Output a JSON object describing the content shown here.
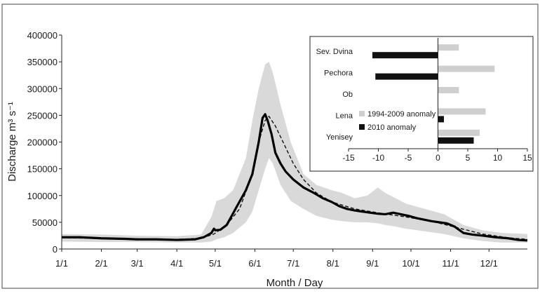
{
  "chart_data": [
    {
      "type": "line",
      "xlabel": "Month / Day",
      "ylabel": "Discharge m³ s⁻¹",
      "x_tick_labels": [
        "1/1",
        "2/1",
        "3/1",
        "4/1",
        "5/1",
        "6/1",
        "7/1",
        "8/1",
        "9/1",
        "10/1",
        "11/1",
        "12/1"
      ],
      "y_tick_labels": [
        "0",
        "50000",
        "100000",
        "150000",
        "200000",
        "250000",
        "300000",
        "350000",
        "400000"
      ],
      "ylim": [
        0,
        400000
      ],
      "xlim_day_of_year": [
        1,
        365
      ],
      "grid": false,
      "series": [
        {
          "role": "observed_2010",
          "style": "thick black solid line",
          "x_day_of_year": [
            1,
            15,
            32,
            50,
            60,
            75,
            91,
            105,
            112,
            118,
            120,
            121,
            125,
            130,
            138,
            145,
            150,
            155,
            158,
            160,
            162,
            165,
            168,
            172,
            176,
            182,
            190,
            198,
            205,
            212,
            218,
            224,
            230,
            236,
            242,
            248,
            254,
            260,
            266,
            272,
            278,
            284,
            290,
            296,
            302,
            308,
            315,
            322,
            330,
            340,
            350,
            358,
            365
          ],
          "y": [
            22000,
            22000,
            20000,
            19000,
            18000,
            18000,
            17000,
            18000,
            22000,
            30000,
            38000,
            35000,
            36000,
            45000,
            80000,
            110000,
            140000,
            200000,
            245000,
            252000,
            240000,
            215000,
            180000,
            160000,
            145000,
            130000,
            115000,
            105000,
            95000,
            88000,
            80000,
            75000,
            72000,
            70000,
            68000,
            66000,
            65000,
            68000,
            65000,
            62000,
            58000,
            55000,
            52000,
            50000,
            48000,
            42000,
            30000,
            27000,
            25000,
            22000,
            20000,
            17000,
            16000
          ]
        },
        {
          "role": "mean",
          "style": "thin dashed black line",
          "x_day_of_year": [
            1,
            32,
            60,
            91,
            110,
            120,
            130,
            140,
            150,
            155,
            160,
            163,
            168,
            175,
            182,
            190,
            200,
            212,
            230,
            250,
            270,
            290,
            310,
            330,
            350,
            365
          ],
          "y": [
            21000,
            20000,
            19000,
            18000,
            20000,
            28000,
            45000,
            75000,
            140000,
            200000,
            240000,
            248000,
            230000,
            195000,
            160000,
            130000,
            105000,
            88000,
            75000,
            67000,
            60000,
            52000,
            40000,
            28000,
            21000,
            18000
          ]
        },
        {
          "role": "range",
          "style": "light gray band",
          "x_day_of_year": [
            1,
            32,
            60,
            91,
            110,
            118,
            122,
            128,
            135,
            145,
            150,
            155,
            160,
            163,
            166,
            172,
            180,
            190,
            200,
            212,
            220,
            230,
            240,
            248,
            254,
            262,
            270,
            285,
            300,
            315,
            330,
            345,
            365
          ],
          "y_upper": [
            28000,
            27000,
            25000,
            24000,
            27000,
            60000,
            90000,
            95000,
            110000,
            170000,
            240000,
            300000,
            345000,
            350000,
            330000,
            270000,
            200000,
            140000,
            120000,
            110000,
            105000,
            95000,
            100000,
            115000,
            105000,
            95000,
            85000,
            75000,
            65000,
            45000,
            35000,
            30000,
            28000
          ],
          "y_lower": [
            14000,
            13000,
            13000,
            12000,
            12000,
            14000,
            18000,
            22000,
            30000,
            50000,
            70000,
            110000,
            150000,
            170000,
            160000,
            120000,
            90000,
            75000,
            62000,
            55000,
            52000,
            50000,
            50000,
            48000,
            45000,
            42000,
            38000,
            33000,
            28000,
            20000,
            15000,
            12000,
            12000
          ]
        }
      ]
    },
    {
      "type": "bar",
      "orientation": "horizontal",
      "categories": [
        "Sev. Dvina",
        "Pechora",
        "Ob",
        "Lena",
        "Yenisey"
      ],
      "x_tick_labels": [
        "-15",
        "-10",
        "-5",
        "0",
        "5",
        "10",
        "15"
      ],
      "xlim": [
        -15,
        15
      ],
      "legend_placement": "lower-left",
      "series": [
        {
          "name": "1994-2009 anomaly",
          "color": "#cfcfcf",
          "values": [
            3.5,
            9.5,
            3.5,
            8,
            7
          ]
        },
        {
          "name": "2010 anomaly",
          "color": "#111111",
          "values": [
            -11,
            -10.5,
            0,
            1,
            6
          ]
        }
      ]
    }
  ]
}
